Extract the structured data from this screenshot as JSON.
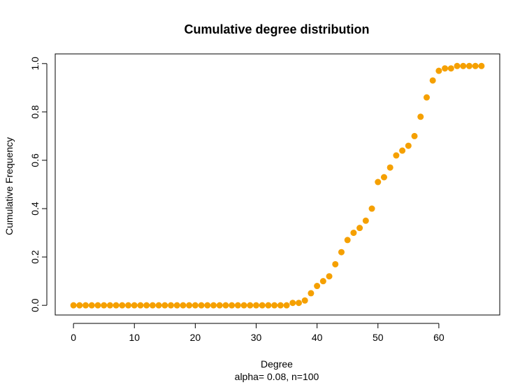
{
  "chart_data": {
    "type": "scatter",
    "title": "Cumulative degree distribution",
    "xlabel": "Degree",
    "subtitle": "alpha= 0.08, n=100",
    "ylabel": "Cumulative Frequency",
    "xlim": [
      -3,
      70
    ],
    "ylim": [
      -0.04,
      1.04
    ],
    "xticks": [
      0,
      10,
      20,
      30,
      40,
      50,
      60
    ],
    "yticks": [
      0.0,
      0.2,
      0.4,
      0.6,
      0.8,
      1.0
    ],
    "ytick_labels": [
      "0.0",
      "0.2",
      "0.4",
      "0.6",
      "0.8",
      "1.0"
    ],
    "grid": false,
    "marker_color": "#f5a000",
    "series": [
      {
        "x": [
          0,
          1,
          2,
          3,
          4,
          5,
          6,
          7,
          8,
          9,
          10,
          11,
          12,
          13,
          14,
          15,
          16,
          17,
          18,
          19,
          20,
          21,
          22,
          23,
          24,
          25,
          26,
          27,
          28,
          29,
          30,
          31,
          32,
          33,
          34,
          35,
          36,
          37,
          38,
          39,
          40,
          41,
          42,
          43,
          44,
          45,
          46,
          47,
          48,
          49,
          50,
          51,
          52,
          53,
          54,
          55,
          56,
          57,
          58,
          59,
          60,
          61,
          62,
          63,
          64,
          65,
          66,
          67
        ],
        "y": [
          0,
          0,
          0,
          0,
          0,
          0,
          0,
          0,
          0,
          0,
          0,
          0,
          0,
          0,
          0,
          0,
          0,
          0,
          0,
          0,
          0,
          0,
          0,
          0,
          0,
          0,
          0,
          0,
          0,
          0,
          0,
          0,
          0,
          0,
          0,
          0,
          0.01,
          0.01,
          0.02,
          0.05,
          0.08,
          0.1,
          0.12,
          0.17,
          0.22,
          0.27,
          0.3,
          0.32,
          0.35,
          0.4,
          0.51,
          0.53,
          0.57,
          0.62,
          0.64,
          0.66,
          0.7,
          0.78,
          0.86,
          0.93,
          0.97,
          0.98,
          0.98,
          0.99,
          0.99,
          0.99,
          0.99,
          0.99
        ]
      }
    ]
  }
}
